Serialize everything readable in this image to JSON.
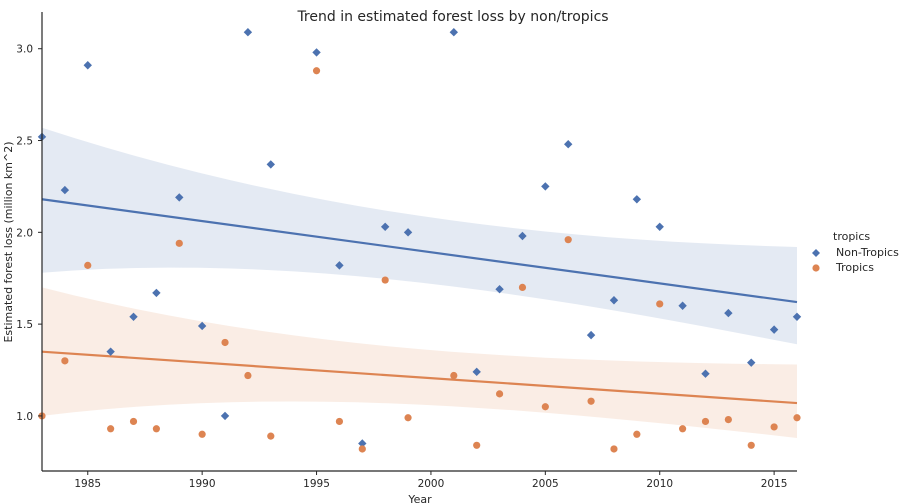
{
  "chart_data": {
    "type": "scatter",
    "title": "Trend in estimated forest loss by non/tropics",
    "xlabel": "Year",
    "ylabel": "Estimated forest loss (million km^2)",
    "xlim": [
      1983,
      2016
    ],
    "ylim": [
      0.7,
      3.2
    ],
    "xticks": [
      "1985",
      "1990",
      "1995",
      "2000",
      "2005",
      "2010",
      "2015"
    ],
    "yticks": [
      "1.0",
      "1.5",
      "2.0",
      "2.5",
      "3.0"
    ],
    "grid": false,
    "legend": {
      "title": "tropics",
      "position": "right"
    },
    "series": [
      {
        "name": "Non-Tropics",
        "color": "#4c72b0",
        "marker": "diamond",
        "x": [
          1983,
          1984,
          1985,
          1986,
          1987,
          1988,
          1989,
          1990,
          1991,
          1992,
          1993,
          1994,
          1995,
          1996,
          1997,
          1998,
          1999,
          2000,
          2001,
          2002,
          2003,
          2004,
          2005,
          2006,
          2007,
          2008,
          2009,
          2010,
          2011,
          2012,
          2013,
          2014,
          2015,
          2016
        ],
        "y": [
          2.52,
          2.23,
          2.91,
          1.35,
          1.54,
          1.67,
          2.19,
          1.49,
          1.0,
          3.09,
          2.37,
          null,
          2.98,
          1.82,
          0.85,
          2.03,
          2.0,
          null,
          3.09,
          1.24,
          1.69,
          1.98,
          2.25,
          2.48,
          1.44,
          1.63,
          2.18,
          2.03,
          1.6,
          1.23,
          1.56,
          1.29,
          1.47,
          1.54
        ],
        "trend": {
          "x": [
            1983,
            2016
          ],
          "y": [
            2.18,
            1.62
          ]
        },
        "ci_upper": [
          2.57,
          1.92
        ],
        "ci_lower": [
          1.78,
          1.39
        ]
      },
      {
        "name": "Tropics",
        "color": "#dd8452",
        "marker": "circle",
        "x": [
          1983,
          1984,
          1985,
          1986,
          1987,
          1988,
          1989,
          1990,
          1991,
          1992,
          1993,
          1994,
          1995,
          1996,
          1997,
          1998,
          1999,
          2000,
          2001,
          2002,
          2003,
          2004,
          2005,
          2006,
          2007,
          2008,
          2009,
          2010,
          2011,
          2012,
          2013,
          2014,
          2015,
          2016
        ],
        "y": [
          1.0,
          1.3,
          1.82,
          0.93,
          0.97,
          0.93,
          1.94,
          0.9,
          1.4,
          1.22,
          0.89,
          null,
          2.88,
          0.97,
          0.82,
          1.74,
          0.99,
          null,
          1.22,
          0.84,
          1.12,
          1.7,
          1.05,
          1.96,
          1.08,
          0.82,
          0.9,
          1.61,
          0.93,
          0.97,
          0.98,
          0.84,
          0.94,
          0.99
        ],
        "trend": {
          "x": [
            1983,
            2016
          ],
          "y": [
            1.35,
            1.07
          ]
        },
        "ci_upper": [
          1.7,
          1.28
        ],
        "ci_lower": [
          1.0,
          0.88
        ]
      }
    ]
  }
}
